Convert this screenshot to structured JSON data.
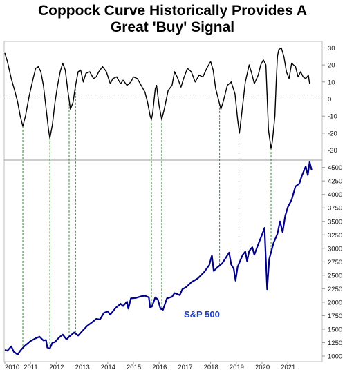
{
  "title_line1": "Coppock Curve Historically Provides A",
  "title_line2": "Great 'Buy' Signal",
  "colors": {
    "coppock": "#000000",
    "sp500": "#00008b",
    "signal": "#2e8b2e",
    "label": "#1e3cc8",
    "zero": "#555555"
  },
  "chart_data": [
    {
      "type": "line",
      "series": [
        {
          "values": [
            [
              2010.0,
              27
            ],
            [
              2010.1,
              22
            ],
            [
              2010.25,
              12
            ],
            [
              2010.4,
              4
            ],
            [
              2010.5,
              -2
            ],
            [
              2010.6,
              -10
            ],
            [
              2010.7,
              -16
            ],
            [
              2010.8,
              -10
            ],
            [
              2010.95,
              2
            ],
            [
              2011.1,
              12
            ],
            [
              2011.2,
              18
            ],
            [
              2011.3,
              19
            ],
            [
              2011.4,
              16
            ],
            [
              2011.5,
              8
            ],
            [
              2011.6,
              -5
            ],
            [
              2011.7,
              -18
            ],
            [
              2011.75,
              -23
            ],
            [
              2011.85,
              -15
            ],
            [
              2011.95,
              -2
            ],
            [
              2012.05,
              8
            ],
            [
              2012.15,
              16
            ],
            [
              2012.25,
              21
            ],
            [
              2012.35,
              17
            ],
            [
              2012.45,
              5
            ],
            [
              2012.55,
              -6
            ],
            [
              2012.65,
              -2
            ],
            [
              2012.75,
              8
            ],
            [
              2012.85,
              16
            ],
            [
              2012.95,
              17
            ],
            [
              2013.05,
              10
            ],
            [
              2013.15,
              15
            ],
            [
              2013.3,
              16
            ],
            [
              2013.45,
              12
            ],
            [
              2013.55,
              13
            ],
            [
              2013.65,
              16
            ],
            [
              2013.8,
              19
            ],
            [
              2013.95,
              16
            ],
            [
              2014.1,
              9
            ],
            [
              2014.2,
              12
            ],
            [
              2014.35,
              13
            ],
            [
              2014.5,
              9
            ],
            [
              2014.6,
              11
            ],
            [
              2014.75,
              8
            ],
            [
              2014.9,
              10
            ],
            [
              2015.0,
              13
            ],
            [
              2015.15,
              12
            ],
            [
              2015.3,
              8
            ],
            [
              2015.45,
              4
            ],
            [
              2015.55,
              -2
            ],
            [
              2015.65,
              -10
            ],
            [
              2015.7,
              -12
            ],
            [
              2015.75,
              -8
            ],
            [
              2015.85,
              6
            ],
            [
              2015.9,
              8
            ],
            [
              2016.0,
              -4
            ],
            [
              2016.1,
              -12
            ],
            [
              2016.2,
              -6
            ],
            [
              2016.35,
              5
            ],
            [
              2016.5,
              8
            ],
            [
              2016.6,
              16
            ],
            [
              2016.7,
              13
            ],
            [
              2016.85,
              7
            ],
            [
              2016.95,
              12
            ],
            [
              2017.1,
              18
            ],
            [
              2017.25,
              16
            ],
            [
              2017.4,
              10
            ],
            [
              2017.55,
              14
            ],
            [
              2017.7,
              13
            ],
            [
              2017.85,
              18
            ],
            [
              2018.0,
              22
            ],
            [
              2018.1,
              17
            ],
            [
              2018.2,
              6
            ],
            [
              2018.3,
              0
            ],
            [
              2018.4,
              -6
            ],
            [
              2018.5,
              -1
            ],
            [
              2018.65,
              8
            ],
            [
              2018.8,
              10
            ],
            [
              2018.95,
              3
            ],
            [
              2019.05,
              -12
            ],
            [
              2019.12,
              -20
            ],
            [
              2019.2,
              -10
            ],
            [
              2019.35,
              10
            ],
            [
              2019.5,
              20
            ],
            [
              2019.6,
              15
            ],
            [
              2019.7,
              9
            ],
            [
              2019.85,
              14
            ],
            [
              2019.95,
              20
            ],
            [
              2020.05,
              23
            ],
            [
              2020.15,
              20
            ],
            [
              2020.25,
              -18
            ],
            [
              2020.35,
              -29
            ],
            [
              2020.4,
              -25
            ],
            [
              2020.5,
              -10
            ],
            [
              2020.55,
              10
            ],
            [
              2020.6,
              25
            ],
            [
              2020.65,
              29
            ],
            [
              2020.75,
              30
            ],
            [
              2020.85,
              25
            ],
            [
              2020.95,
              16
            ],
            [
              2021.05,
              12
            ],
            [
              2021.15,
              21
            ],
            [
              2021.3,
              19
            ],
            [
              2021.4,
              13
            ],
            [
              2021.5,
              16
            ],
            [
              2021.6,
              13
            ],
            [
              2021.7,
              12
            ],
            [
              2021.8,
              14
            ],
            [
              2021.85,
              9
            ]
          ]
        }
      ],
      "ylim": [
        -35,
        32
      ],
      "yticks": [
        30,
        20,
        10,
        0,
        -10,
        -20,
        -30
      ]
    },
    {
      "type": "line",
      "series": [
        {
          "name": "S&P 500",
          "values": [
            [
              2010.0,
              1115
            ],
            [
              2010.1,
              1100
            ],
            [
              2010.25,
              1180
            ],
            [
              2010.35,
              1080
            ],
            [
              2010.5,
              1030
            ],
            [
              2010.6,
              1100
            ],
            [
              2010.75,
              1180
            ],
            [
              2010.9,
              1240
            ],
            [
              2011.0,
              1280
            ],
            [
              2011.2,
              1330
            ],
            [
              2011.35,
              1360
            ],
            [
              2011.5,
              1290
            ],
            [
              2011.6,
              1300
            ],
            [
              2011.65,
              1160
            ],
            [
              2011.75,
              1140
            ],
            [
              2011.85,
              1250
            ],
            [
              2011.95,
              1260
            ],
            [
              2012.1,
              1340
            ],
            [
              2012.25,
              1400
            ],
            [
              2012.4,
              1310
            ],
            [
              2012.5,
              1360
            ],
            [
              2012.7,
              1440
            ],
            [
              2012.85,
              1380
            ],
            [
              2013.0,
              1460
            ],
            [
              2013.2,
              1560
            ],
            [
              2013.4,
              1630
            ],
            [
              2013.55,
              1690
            ],
            [
              2013.7,
              1680
            ],
            [
              2013.85,
              1800
            ],
            [
              2014.0,
              1830
            ],
            [
              2014.1,
              1770
            ],
            [
              2014.3,
              1890
            ],
            [
              2014.5,
              1970
            ],
            [
              2014.6,
              1930
            ],
            [
              2014.75,
              2010
            ],
            [
              2014.8,
              1880
            ],
            [
              2014.9,
              2070
            ],
            [
              2015.1,
              2080
            ],
            [
              2015.3,
              2110
            ],
            [
              2015.45,
              2120
            ],
            [
              2015.6,
              2090
            ],
            [
              2015.65,
              1900
            ],
            [
              2015.72,
              1920
            ],
            [
              2015.85,
              2090
            ],
            [
              2015.95,
              2050
            ],
            [
              2016.05,
              1880
            ],
            [
              2016.15,
              1860
            ],
            [
              2016.3,
              2070
            ],
            [
              2016.5,
              2100
            ],
            [
              2016.6,
              2170
            ],
            [
              2016.8,
              2130
            ],
            [
              2016.9,
              2240
            ],
            [
              2017.05,
              2280
            ],
            [
              2017.25,
              2370
            ],
            [
              2017.5,
              2440
            ],
            [
              2017.75,
              2560
            ],
            [
              2017.95,
              2690
            ],
            [
              2018.05,
              2870
            ],
            [
              2018.12,
              2580
            ],
            [
              2018.25,
              2640
            ],
            [
              2018.45,
              2720
            ],
            [
              2018.6,
              2830
            ],
            [
              2018.72,
              2920
            ],
            [
              2018.8,
              2700
            ],
            [
              2018.9,
              2620
            ],
            [
              2018.97,
              2400
            ],
            [
              2019.05,
              2660
            ],
            [
              2019.25,
              2880
            ],
            [
              2019.35,
              2940
            ],
            [
              2019.42,
              2760
            ],
            [
              2019.5,
              2950
            ],
            [
              2019.62,
              3020
            ],
            [
              2019.7,
              2880
            ],
            [
              2019.85,
              3070
            ],
            [
              2019.98,
              3230
            ],
            [
              2020.1,
              3380
            ],
            [
              2020.12,
              3100
            ],
            [
              2020.2,
              2240
            ],
            [
              2020.28,
              2800
            ],
            [
              2020.45,
              3100
            ],
            [
              2020.6,
              3270
            ],
            [
              2020.7,
              3500
            ],
            [
              2020.8,
              3300
            ],
            [
              2020.9,
              3600
            ],
            [
              2021.0,
              3760
            ],
            [
              2021.15,
              3900
            ],
            [
              2021.3,
              4150
            ],
            [
              2021.45,
              4200
            ],
            [
              2021.55,
              4350
            ],
            [
              2021.7,
              4520
            ],
            [
              2021.78,
              4360
            ],
            [
              2021.85,
              4600
            ],
            [
              2021.93,
              4450
            ]
          ]
        }
      ],
      "annotation": "S&P 500",
      "xticks": [
        "2010",
        "2011",
        "2012",
        "2013",
        "2014",
        "2015",
        "2016",
        "2017",
        "2018",
        "2019",
        "2020",
        "2021"
      ],
      "ylim": [
        950,
        4700
      ],
      "yticks": [
        4500,
        4250,
        4000,
        3750,
        3500,
        3250,
        3000,
        2750,
        2500,
        2250,
        2000,
        1750,
        1500,
        1250,
        1000
      ]
    }
  ],
  "buy_signal_dates": [
    2010.7,
    2011.75,
    2012.5,
    2012.75,
    2015.7,
    2016.1,
    2018.35,
    2019.1,
    2020.35
  ]
}
